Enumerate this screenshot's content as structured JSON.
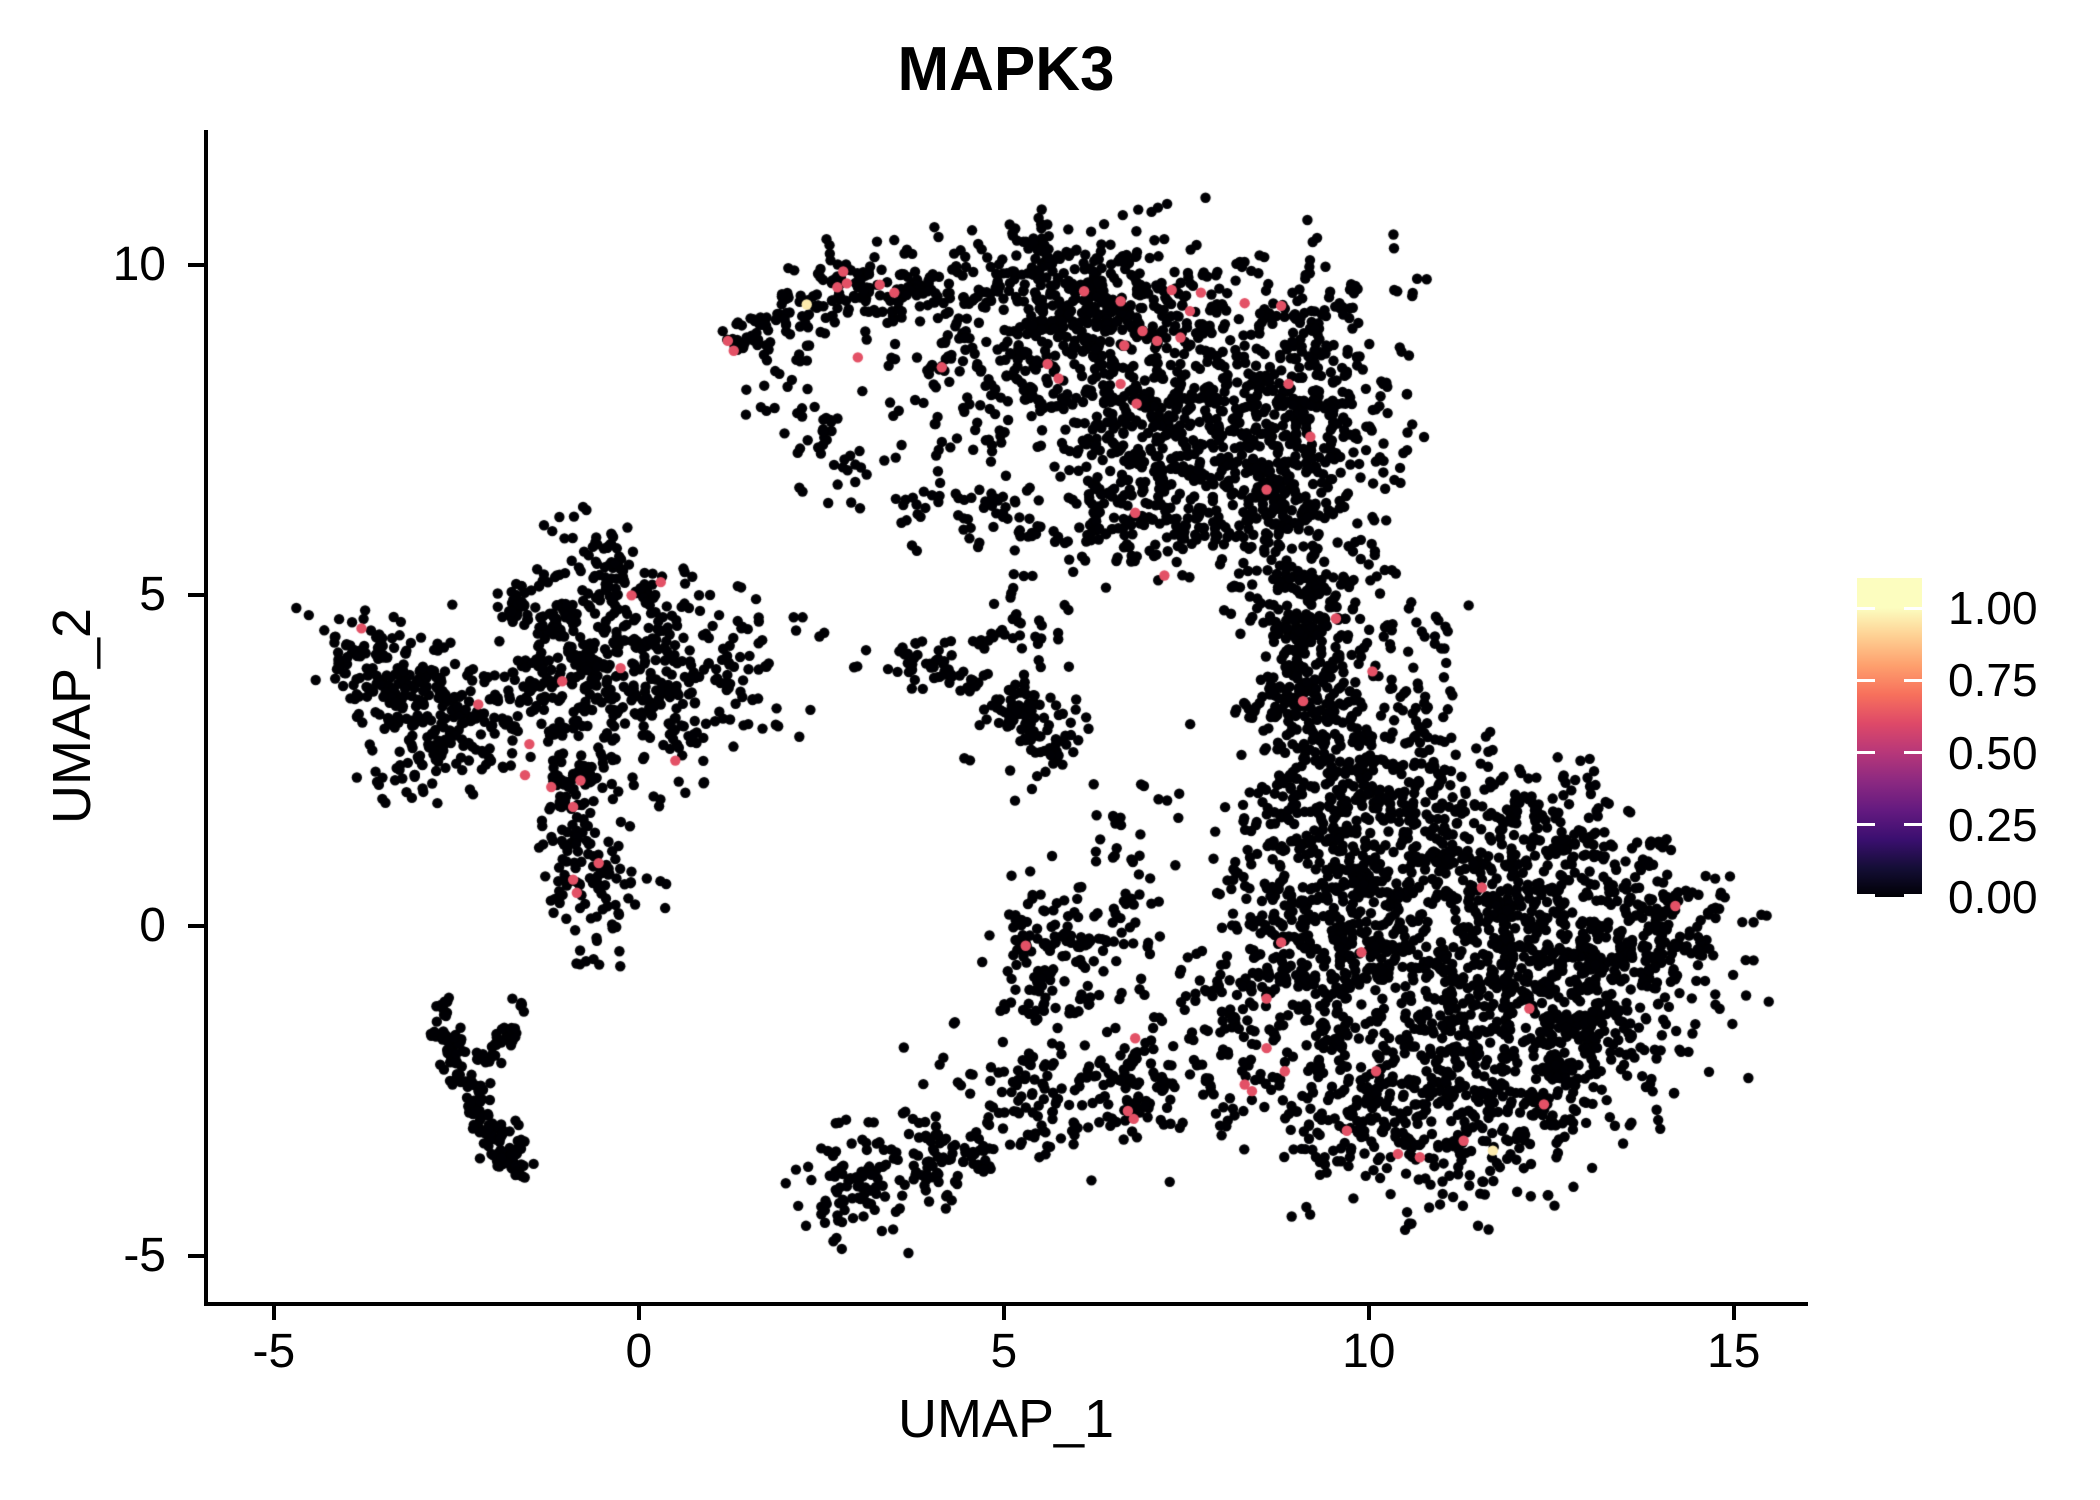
{
  "chart_data": {
    "type": "scatter",
    "title": "MAPK3",
    "xlabel": "UMAP_1",
    "ylabel": "UMAP_2",
    "x_ticks": [
      -5,
      0,
      5,
      10,
      15
    ],
    "y_ticks": [
      -5,
      0,
      5,
      10
    ],
    "xlim": [
      -5.93,
      15.99
    ],
    "ylim": [
      -5.69,
      12.04
    ],
    "grid": false,
    "background": "#FFFFFF",
    "axis_color": "#000000",
    "zero_expression_color": "#000004",
    "colorbar": {
      "position": "right",
      "tick_labels": [
        "1.00",
        "0.75",
        "0.50",
        "0.25",
        "0.00"
      ],
      "tick_values": [
        1.0,
        0.75,
        0.5,
        0.25,
        0.0
      ],
      "display_max": 1.104,
      "palette_name": "magma",
      "stops": [
        {
          "v": 0.0,
          "c": "#000004"
        },
        {
          "v": 0.1,
          "c": "#140E36"
        },
        {
          "v": 0.2,
          "c": "#3B0F70"
        },
        {
          "v": 0.3,
          "c": "#641A80"
        },
        {
          "v": 0.4,
          "c": "#8C2981"
        },
        {
          "v": 0.5,
          "c": "#B73779"
        },
        {
          "v": 0.6,
          "c": "#DE4968"
        },
        {
          "v": 0.7,
          "c": "#F7705C"
        },
        {
          "v": 0.8,
          "c": "#FE9F6D"
        },
        {
          "v": 0.9,
          "c": "#FECF92"
        },
        {
          "v": 1.0,
          "c": "#FCFDBF"
        }
      ]
    },
    "point_radius_px": 5.2,
    "clusters": [
      {
        "t": "g",
        "x": 7.0,
        "y": 8.45,
        "sx": 1.3,
        "sy": 1.0,
        "n": 470
      },
      {
        "t": "g",
        "x": 8.0,
        "y": 7.05,
        "sx": 0.9,
        "sy": 0.85,
        "n": 240
      },
      {
        "t": "g",
        "x": 9.35,
        "y": 7.95,
        "sx": 0.6,
        "sy": 0.95,
        "n": 170
      },
      {
        "t": "g",
        "x": 5.9,
        "y": 9.4,
        "sx": 0.9,
        "sy": 0.55,
        "n": 160
      },
      {
        "t": "g",
        "x": 5.65,
        "y": 10.15,
        "sx": 0.45,
        "sy": 0.25,
        "n": 36
      },
      {
        "t": "s",
        "x1": 1.25,
        "y1": 8.75,
        "x2": 3.1,
        "y2": 9.85,
        "w": 0.2,
        "n": 80
      },
      {
        "t": "g",
        "x": 3.6,
        "y": 9.55,
        "sx": 0.55,
        "sy": 0.42,
        "n": 85
      },
      {
        "t": "s",
        "x1": 1.6,
        "y1": 8.45,
        "x2": 3.3,
        "y2": 6.7,
        "w": 0.3,
        "n": 40
      },
      {
        "t": "g",
        "x": 4.35,
        "y": 7.9,
        "sx": 0.9,
        "sy": 0.75,
        "n": 45
      },
      {
        "t": "s",
        "x1": 3.5,
        "y1": 6.45,
        "x2": 5.6,
        "y2": 5.95,
        "w": 0.3,
        "n": 35
      },
      {
        "t": "g",
        "x": 6.7,
        "y": 6.15,
        "sx": 0.7,
        "sy": 0.5,
        "n": 95
      },
      {
        "t": "s",
        "x1": 8.9,
        "y1": 6.4,
        "x2": 9.1,
        "y2": 3.1,
        "w": 0.33,
        "n": 200
      },
      {
        "t": "g",
        "x": 9.65,
        "y": 4.6,
        "sx": 0.45,
        "sy": 0.9,
        "n": 55
      },
      {
        "t": "g",
        "x": 10.45,
        "y": 3.95,
        "sx": 0.55,
        "sy": 0.6,
        "n": 30
      },
      {
        "t": "g",
        "x": 9.6,
        "y": 2.6,
        "sx": 0.8,
        "sy": 0.5,
        "n": 110
      },
      {
        "t": "g",
        "x": 11.2,
        "y": -0.7,
        "sx": 1.5,
        "sy": 1.3,
        "n": 620
      },
      {
        "t": "g",
        "x": 12.9,
        "y": -1.0,
        "sx": 0.9,
        "sy": 0.95,
        "n": 280
      },
      {
        "t": "g",
        "x": 14.0,
        "y": 0.1,
        "sx": 0.42,
        "sy": 0.55,
        "n": 75
      },
      {
        "t": "g",
        "x": 10.2,
        "y": 1.4,
        "sx": 0.95,
        "sy": 0.85,
        "n": 270
      },
      {
        "t": "g",
        "x": 9.2,
        "y": 0.0,
        "sx": 0.6,
        "sy": 1.1,
        "n": 200
      },
      {
        "t": "g",
        "x": 10.9,
        "y": -2.9,
        "sx": 1.15,
        "sy": 0.6,
        "n": 230
      },
      {
        "t": "g",
        "x": 12.6,
        "y": 1.0,
        "sx": 0.6,
        "sy": 0.6,
        "n": 110
      },
      {
        "t": "g",
        "x": -3.75,
        "y": 4.1,
        "sx": 0.32,
        "sy": 0.38,
        "n": 55
      },
      {
        "t": "g",
        "x": -3.25,
        "y": 3.6,
        "sx": 0.4,
        "sy": 0.35,
        "n": 50
      },
      {
        "t": "g",
        "x": -2.85,
        "y": 2.95,
        "sx": 0.42,
        "sy": 0.6,
        "n": 95
      },
      {
        "t": "g",
        "x": -1.95,
        "y": 3.1,
        "sx": 0.5,
        "sy": 0.55,
        "n": 35
      },
      {
        "t": "g",
        "x": -0.65,
        "y": 3.9,
        "sx": 0.75,
        "sy": 0.85,
        "n": 230
      },
      {
        "t": "s",
        "x1": -0.5,
        "y1": 4.9,
        "x2": -0.42,
        "y2": 6.0,
        "w": 0.13,
        "n": 30
      },
      {
        "t": "g",
        "x": 0.75,
        "y": 3.8,
        "sx": 0.75,
        "sy": 0.6,
        "n": 110
      },
      {
        "t": "s",
        "x1": -0.8,
        "y1": 2.6,
        "x2": -0.95,
        "y2": 1.1,
        "w": 0.18,
        "n": 60
      },
      {
        "t": "g",
        "x": -0.7,
        "y": 0.55,
        "sx": 0.38,
        "sy": 0.45,
        "n": 70
      },
      {
        "t": "g",
        "x": 0.15,
        "y": 5.1,
        "sx": 0.4,
        "sy": 0.4,
        "n": 25
      },
      {
        "t": "s",
        "x1": -2.0,
        "y1": 4.85,
        "x2": -0.9,
        "y2": 4.55,
        "w": 0.12,
        "n": 35
      },
      {
        "t": "s",
        "x1": 3.5,
        "y1": 4.15,
        "x2": 4.75,
        "y2": 3.7,
        "w": 0.15,
        "n": 40
      },
      {
        "t": "s",
        "x1": 4.95,
        "y1": 3.55,
        "x2": 5.85,
        "y2": 2.45,
        "w": 0.24,
        "n": 75
      },
      {
        "t": "g",
        "x": 5.3,
        "y": 4.6,
        "sx": 0.35,
        "sy": 0.35,
        "n": 12
      },
      {
        "t": "s",
        "x1": 4.8,
        "y1": 4.2,
        "x2": 5.1,
        "y2": 4.75,
        "w": 0.12,
        "n": 10
      },
      {
        "t": "g",
        "x": 2.95,
        "y": -4.0,
        "sx": 0.3,
        "sy": 0.32,
        "n": 45
      },
      {
        "t": "g",
        "x": 3.2,
        "y": -3.75,
        "sx": 0.55,
        "sy": 0.45,
        "n": 30
      },
      {
        "t": "s",
        "x1": 3.45,
        "y1": -3.7,
        "x2": 7.3,
        "y2": -2.3,
        "w": 0.3,
        "n": 130
      },
      {
        "t": "g",
        "x": 5.5,
        "y": -2.15,
        "sx": 0.9,
        "sy": 0.55,
        "n": 55
      },
      {
        "t": "g",
        "x": 5.55,
        "y": -0.2,
        "sx": 0.3,
        "sy": 0.55,
        "n": 55
      },
      {
        "t": "g",
        "x": 5.9,
        "y": -0.75,
        "sx": 0.55,
        "sy": 0.6,
        "n": 35
      },
      {
        "t": "s",
        "x1": 6.75,
        "y1": 2.2,
        "x2": 6.6,
        "y2": -0.3,
        "w": 0.28,
        "n": 35
      },
      {
        "t": "g",
        "x": 7.7,
        "y": -1.5,
        "sx": 0.75,
        "sy": 0.75,
        "n": 70
      },
      {
        "t": "s",
        "x1": -2.68,
        "y1": -1.05,
        "x2": -2.7,
        "y2": -1.5,
        "w": 0.04,
        "n": 8
      },
      {
        "t": "s",
        "x1": -2.7,
        "y1": -1.55,
        "x2": -2.28,
        "y2": -2.6,
        "w": 0.08,
        "n": 45
      },
      {
        "t": "s",
        "x1": -2.28,
        "y1": -2.6,
        "x2": -1.9,
        "y2": -3.25,
        "w": 0.08,
        "n": 32
      },
      {
        "t": "g",
        "x": -1.75,
        "y": -3.45,
        "sx": 0.13,
        "sy": 0.15,
        "n": 28
      },
      {
        "t": "s",
        "x1": -1.72,
        "y1": -1.55,
        "x2": -2.18,
        "y2": -2.1,
        "w": 0.07,
        "n": 22
      },
      {
        "t": "g",
        "x": -1.62,
        "y": -3.78,
        "sx": 0.05,
        "sy": 0.05,
        "n": 5
      },
      {
        "t": "g",
        "x": -1.6,
        "y": -1.22,
        "sx": 0.03,
        "sy": 0.03,
        "n": 3
      }
    ],
    "expressing_cells": [
      [
        2.3,
        9.4,
        0.96
      ],
      [
        2.8,
        9.9,
        0.62
      ],
      [
        2.85,
        9.72,
        0.62
      ],
      [
        2.72,
        9.66,
        0.62
      ],
      [
        3.3,
        9.7,
        0.62
      ],
      [
        3.5,
        9.58,
        0.62
      ],
      [
        1.22,
        8.85,
        0.62
      ],
      [
        1.3,
        8.7,
        0.62
      ],
      [
        3.0,
        8.6,
        0.62
      ],
      [
        6.1,
        9.6,
        0.62
      ],
      [
        6.6,
        9.45,
        0.62
      ],
      [
        7.3,
        9.62,
        0.62
      ],
      [
        7.7,
        9.58,
        0.62
      ],
      [
        7.55,
        9.3,
        0.62
      ],
      [
        8.3,
        9.42,
        0.62
      ],
      [
        8.8,
        9.38,
        0.62
      ],
      [
        6.9,
        9.0,
        0.62
      ],
      [
        7.1,
        8.85,
        0.62
      ],
      [
        6.65,
        8.78,
        0.62
      ],
      [
        7.42,
        8.9,
        0.62
      ],
      [
        4.15,
        8.45,
        0.62
      ],
      [
        5.6,
        8.5,
        0.62
      ],
      [
        5.75,
        8.28,
        0.62
      ],
      [
        6.6,
        8.2,
        0.62
      ],
      [
        6.82,
        7.9,
        0.62
      ],
      [
        8.9,
        8.2,
        0.62
      ],
      [
        9.2,
        7.4,
        0.62
      ],
      [
        8.6,
        6.6,
        0.62
      ],
      [
        6.8,
        6.25,
        0.62
      ],
      [
        7.2,
        5.3,
        0.62
      ],
      [
        9.55,
        4.65,
        0.62
      ],
      [
        10.05,
        3.85,
        0.62
      ],
      [
        9.1,
        3.4,
        0.62
      ],
      [
        11.55,
        0.58,
        0.62
      ],
      [
        14.2,
        0.3,
        0.62
      ],
      [
        8.8,
        -0.25,
        0.62
      ],
      [
        9.9,
        -0.4,
        0.62
      ],
      [
        8.6,
        -1.1,
        0.62
      ],
      [
        12.2,
        -1.25,
        0.62
      ],
      [
        12.4,
        -2.7,
        0.62
      ],
      [
        8.6,
        -1.85,
        0.62
      ],
      [
        8.85,
        -2.2,
        0.62
      ],
      [
        8.3,
        -2.4,
        0.62
      ],
      [
        10.1,
        -2.2,
        0.62
      ],
      [
        9.7,
        -3.1,
        0.62
      ],
      [
        10.4,
        -3.45,
        0.62
      ],
      [
        10.7,
        -3.5,
        0.62
      ],
      [
        11.3,
        -3.25,
        0.62
      ],
      [
        11.7,
        -3.4,
        0.96
      ],
      [
        -3.8,
        4.5,
        0.62
      ],
      [
        0.3,
        5.2,
        0.62
      ],
      [
        -0.1,
        5.0,
        0.62
      ],
      [
        -0.25,
        3.9,
        0.62
      ],
      [
        -1.05,
        3.7,
        0.62
      ],
      [
        -2.2,
        3.35,
        0.62
      ],
      [
        -1.5,
        2.75,
        0.62
      ],
      [
        -1.56,
        2.28,
        0.62
      ],
      [
        -0.8,
        2.2,
        0.62
      ],
      [
        -1.2,
        2.1,
        0.62
      ],
      [
        -0.9,
        1.8,
        0.62
      ],
      [
        0.5,
        2.5,
        0.62
      ],
      [
        -0.55,
        0.95,
        0.62
      ],
      [
        -0.9,
        0.7,
        0.62
      ],
      [
        -0.85,
        0.5,
        0.62
      ],
      [
        5.3,
        -0.3,
        0.62
      ],
      [
        6.8,
        -1.7,
        0.62
      ],
      [
        6.7,
        -2.8,
        0.62
      ],
      [
        6.78,
        -2.92,
        0.62
      ],
      [
        8.4,
        -2.5,
        0.62
      ]
    ]
  }
}
